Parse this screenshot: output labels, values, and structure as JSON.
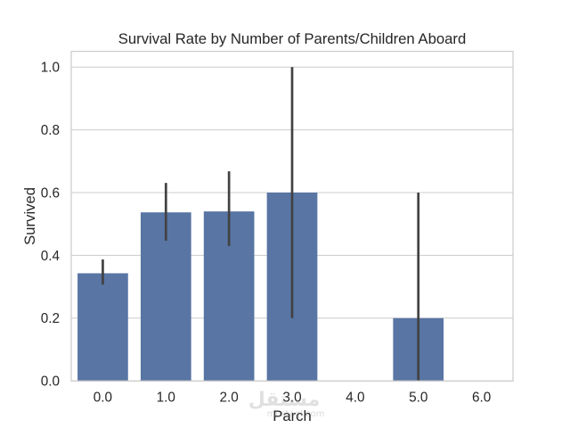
{
  "chart_data": {
    "type": "bar",
    "title": "Survival Rate by Number of Parents/Children Aboard",
    "xlabel": "Parch",
    "ylabel": "Survived",
    "categories": [
      "0.0",
      "1.0",
      "2.0",
      "3.0",
      "4.0",
      "5.0",
      "6.0"
    ],
    "values": [
      0.343,
      0.537,
      0.54,
      0.6,
      0.0,
      0.2,
      0.0
    ],
    "error_bars": [
      [
        0.307,
        0.387
      ],
      [
        0.447,
        0.631
      ],
      [
        0.43,
        0.668
      ],
      [
        0.2,
        1.0
      ],
      [
        0.0,
        0.0
      ],
      [
        0.0,
        0.6
      ],
      [
        0.0,
        0.0
      ]
    ],
    "yticks": [
      "0.0",
      "0.2",
      "0.4",
      "0.6",
      "0.8",
      "1.0"
    ],
    "ylim": [
      0,
      1.05
    ],
    "grid": {
      "x": false,
      "y": true
    },
    "colors": {
      "bar": "#5875A4",
      "error_bar": "#424242",
      "grid": "#CCCCCC"
    }
  },
  "watermark": {
    "logo_text": "مستقل",
    "logo_subtext": "mostaql.com"
  }
}
